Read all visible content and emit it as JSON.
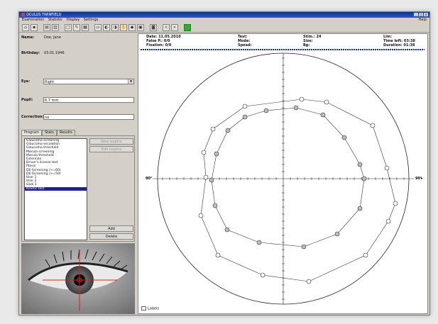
{
  "window": {
    "title": "OCULUS TWINFIELD"
  },
  "menu": {
    "items": [
      "Examination",
      "Statistic",
      "Display",
      "Settings"
    ],
    "help": "Help"
  },
  "patient": {
    "name_label": "Name:",
    "name_value": "Doe, Jane",
    "birthday_label": "Birthday:",
    "birthday_value": "03.01.1946",
    "eye_label": "Eye:",
    "eye_value": "Right",
    "pupil_label": "Pupil:",
    "pupil_value": "6.7 mm",
    "correction_label": "Correction:",
    "correction_value": "no"
  },
  "tabs": [
    "Program",
    "Stats",
    "Results"
  ],
  "programs": [
    "Glaucoma screening",
    "Glaucoma escalation",
    "Glaucoma threshold",
    "Macula screening",
    "Macula threshold",
    "Esterman",
    "Driver's license test",
    "Ptosis",
    "DE-Screening (>=60)",
    "DE-Screening (>=50)",
    "User 1",
    "User 2",
    "Goal 3",
    "Kinetic test"
  ],
  "selected_program": "Kinetic test",
  "buttons": {
    "new_isoptre": "New isoptre",
    "edit_isoptre": "Edit isoptre",
    "add": "Add",
    "delete": "Delete"
  },
  "exam": {
    "date_label": "Date:",
    "date_value": "11.05.2010",
    "false_pos_label": "False P.:",
    "false_pos_value": "0/0",
    "fixation_label": "Fixation:",
    "fixation_value": "0/0",
    "test_label": "Test:",
    "test_value": "",
    "strategy_label": "Mode:",
    "strategy_value": "",
    "speed_label": "Speed:",
    "speed_value": "",
    "stimuli_label": "Stim.:",
    "stimuli_value": "24",
    "size_label": "Size:",
    "size_value": "",
    "bg_label": "Bg:",
    "bg_value": "",
    "limit_label": "Lim:",
    "limit_value": "",
    "time_label": "Time left:",
    "time_value": "03:38",
    "duration_label": "Duration:",
    "duration_value": "01:38"
  },
  "chart_axis": {
    "left": "90°",
    "right": "90°"
  },
  "legend_label": "Labels",
  "colors": {
    "title_bar": "#1b3ea5",
    "selection": "#22218a",
    "crosshair": "#e41b1b"
  }
}
